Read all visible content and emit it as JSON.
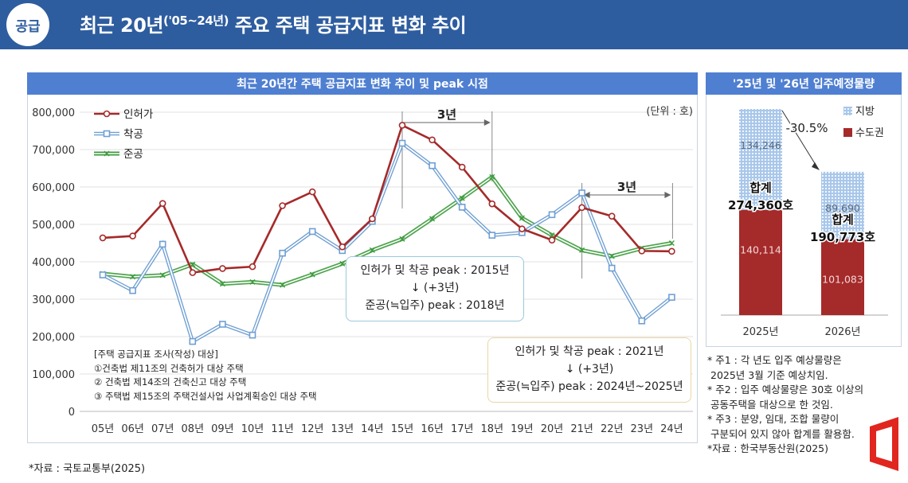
{
  "header": {
    "badge": "공급",
    "title_main": "최근 20년",
    "title_sup": "('05~24년)",
    "title_rest": " 주요 주택 공급지표 변화 추이"
  },
  "left_panel": {
    "title": "최근 20년간 주택 공급지표 변화 추이 및 peak 시점",
    "unit": "(단위 : 호)",
    "span_label_1": "3년",
    "span_label_2": "3년",
    "callout_1": {
      "line1": "인허가 및 착공 peak : 2015년",
      "line2": "↓ (+3년)",
      "line3": "준공(≒입주) peak : 2018년"
    },
    "callout_2": {
      "line1": "인허가 및 착공 peak : 2021년",
      "line2": "↓ (+3년)",
      "line3": "준공(≒입주) peak : 2024년~2025년"
    },
    "survey_note": {
      "line1": "[주택 공급지표 조사(작성) 대상]",
      "line2": "①건축법 제11조의 건축허가 대상 주택",
      "line3": "② 건축법 제14조의 건축신고 대상 주택",
      "line4": "③ 주택법 제15조의 주택건설사업 사업계획승인 대상 주택"
    }
  },
  "right_panel": {
    "title": "'25년 및 '26년 입주예정물량",
    "change_label": "-30.5%",
    "total_2025_label": "합계",
    "total_2025_value": "274,360호",
    "total_2026_label": "합계",
    "total_2026_value": "190,773호",
    "notes": [
      "* 주1 : 각 년도 입주 예상물량은",
      "2025년 3월 기준 예상치임.",
      "* 주2 : 입주 예상물량은 30호 이상의",
      "공동주택을 대상으로 한 것임.",
      "* 주3 : 분양, 임대, 조합 물량이",
      "구분되어 있지 않아 합계를 활용함.",
      "*자료 : 한국부동산원(2025)"
    ]
  },
  "source_left": "*자료 : 국토교통부(2025)",
  "chart_data": [
    {
      "type": "line",
      "title": "최근 20년간 주택 공급지표 변화 추이 및 peak 시점",
      "categories": [
        "05년",
        "06년",
        "07년",
        "08년",
        "09년",
        "10년",
        "11년",
        "12년",
        "13년",
        "14년",
        "15년",
        "16년",
        "17년",
        "18년",
        "19년",
        "20년",
        "21년",
        "22년",
        "23년",
        "24년"
      ],
      "ylim": [
        0,
        800000
      ],
      "yticks": [
        0,
        100000,
        200000,
        300000,
        400000,
        500000,
        600000,
        700000,
        800000
      ],
      "ytick_labels": [
        "0",
        "100,000",
        "200,000",
        "300,000",
        "400,000",
        "500,000",
        "600,000",
        "700,000",
        "800,000"
      ],
      "grid": true,
      "legend": "top-left",
      "series": [
        {
          "name": "인허가",
          "color": "#a52a2a",
          "marker": "circle",
          "values": [
            464000,
            469000,
            556000,
            371000,
            382000,
            387000,
            550000,
            587000,
            440000,
            515000,
            765000,
            726000,
            653000,
            555000,
            488000,
            458000,
            545000,
            522000,
            429000,
            428000
          ]
        },
        {
          "name": "착공",
          "color": "#6f9fd3",
          "marker": "square",
          "values": [
            365000,
            323000,
            447000,
            187000,
            233000,
            204000,
            423000,
            481000,
            430000,
            508000,
            717000,
            657000,
            546000,
            471000,
            478000,
            526000,
            584000,
            383000,
            242000,
            305000
          ]
        },
        {
          "name": "준공",
          "color": "#3c9a3c",
          "marker": "x",
          "values": [
            368000,
            360000,
            364000,
            393000,
            341000,
            346000,
            338000,
            366000,
            395000,
            431000,
            461000,
            515000,
            570000,
            627000,
            517000,
            471000,
            431000,
            415000,
            436000,
            450000
          ]
        }
      ]
    },
    {
      "type": "bar",
      "title": "'25년 및 '26년 입주예정물량",
      "stacked": true,
      "categories": [
        "2025년",
        "2026년"
      ],
      "legend": "top-right",
      "series": [
        {
          "name": "지방",
          "color": "#8fb5e0",
          "values": [
            134246,
            89690
          ],
          "labels": [
            "134,246",
            "89,690"
          ]
        },
        {
          "name": "수도권",
          "color": "#a52a2a",
          "values": [
            140114,
            101083
          ],
          "labels": [
            "140,114",
            "101,083"
          ]
        }
      ]
    }
  ]
}
